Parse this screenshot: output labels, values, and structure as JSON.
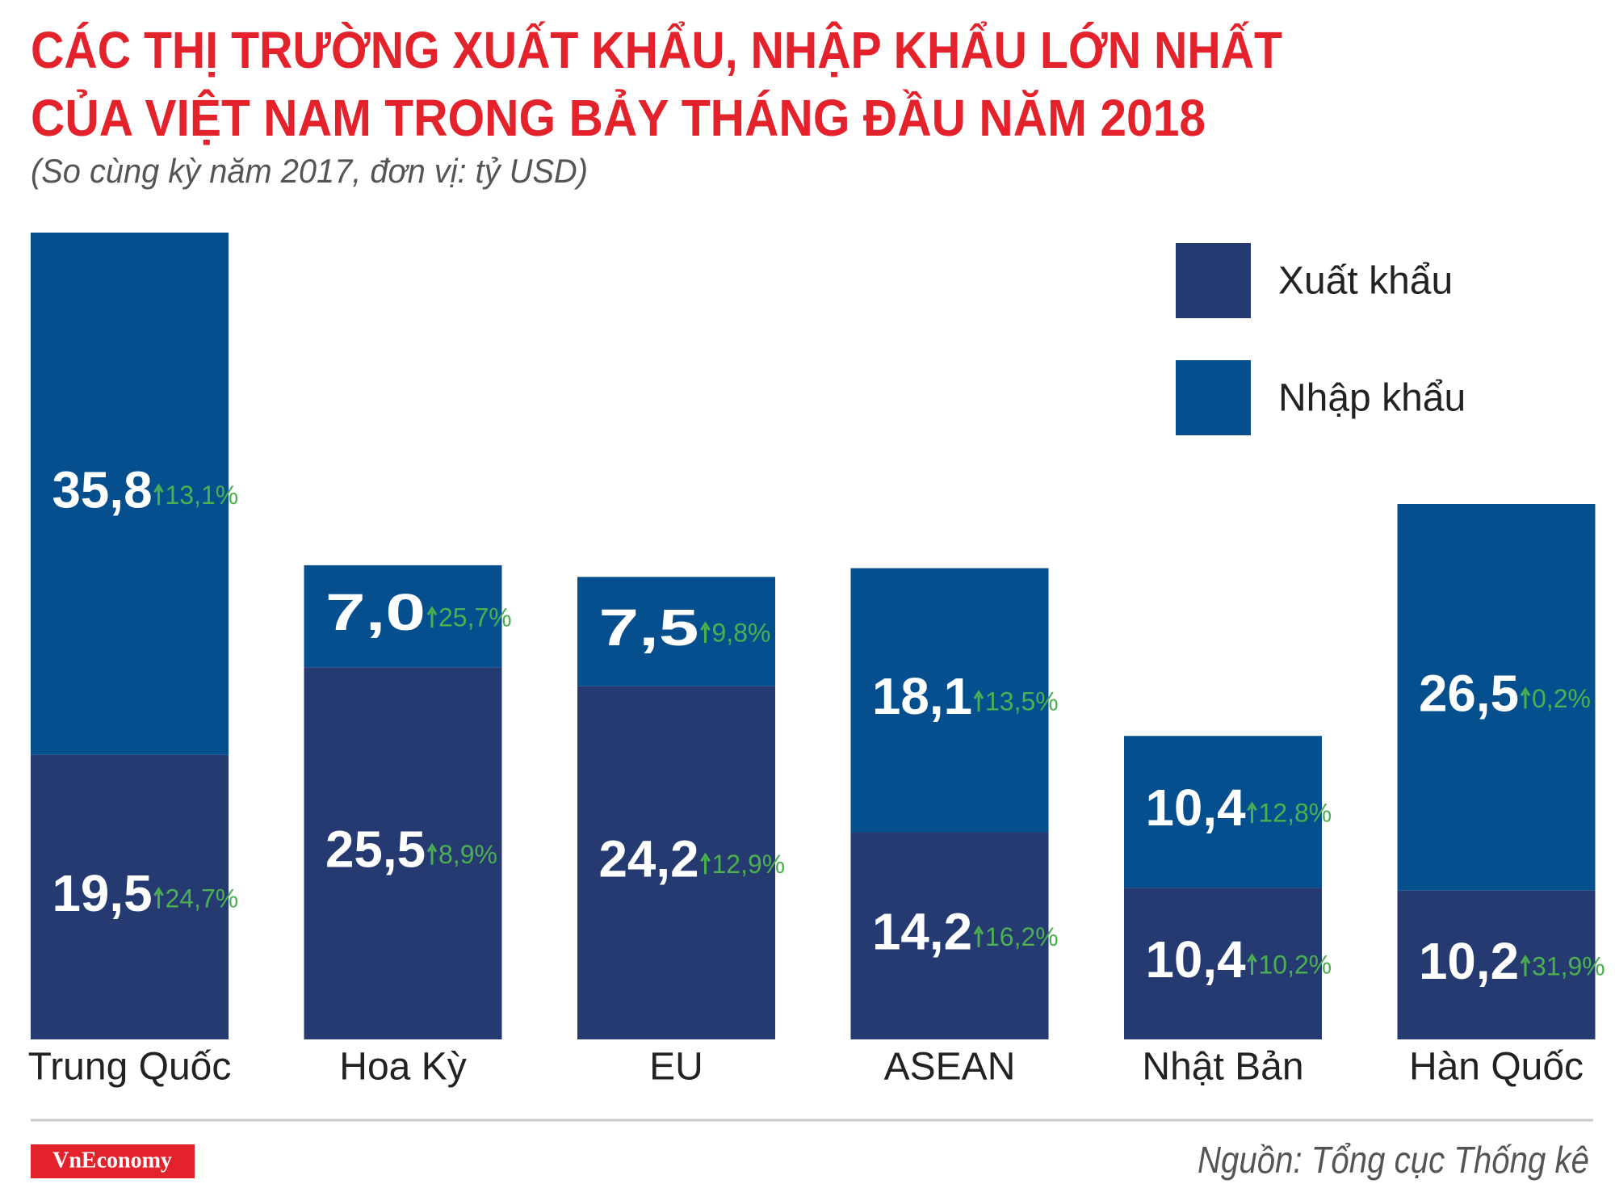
{
  "chart_data": {
    "type": "stacked_bar",
    "title": [
      "CÁC THỊ TRƯỜNG XUẤT KHẨU, NHẬP KHẨU LỚN NHẤT",
      "CỦA VIỆT NAM TRONG BẢY THÁNG ĐẦU NĂM 2018"
    ],
    "subtitle": "(So cùng kỳ năm 2017, đơn vị: tỷ USD)",
    "categories": [
      "Trung Quốc",
      "Hoa Kỳ",
      "EU",
      "ASEAN",
      "Nhật Bản",
      "Hàn Quốc"
    ],
    "series": [
      {
        "name": "Xuất khẩu",
        "color": "#253a70",
        "values": [
          19.5,
          25.5,
          24.2,
          14.2,
          10.4,
          10.2
        ],
        "value_labels": [
          "19,5",
          "25,5",
          "24,2",
          "14,2",
          "10,4",
          "10,2"
        ],
        "growth": [
          24.7,
          8.9,
          12.9,
          16.2,
          10.2,
          31.9
        ],
        "growth_labels": [
          "24,7%",
          "8,9%",
          "12,9%",
          "16,2%",
          "10,2%",
          "31,9%"
        ]
      },
      {
        "name": "Nhập khẩu",
        "color": "#064f8f",
        "values": [
          35.8,
          7.0,
          7.5,
          18.1,
          10.4,
          26.5
        ],
        "value_labels": [
          "35,8",
          "7,0",
          "7,5",
          "18,1",
          "10,4",
          "26,5"
        ],
        "growth": [
          13.1,
          25.7,
          9.8,
          13.5,
          12.8,
          0.2
        ],
        "growth_labels": [
          "13,1%",
          "25,7%",
          "9,8%",
          "13,5%",
          "12,8%",
          "0,2%"
        ]
      }
    ],
    "growth_color": "#4caf50",
    "legend": "top-right",
    "source": "Nguồn: Tổng cục Thống kê",
    "brand": "VnEconomy"
  }
}
